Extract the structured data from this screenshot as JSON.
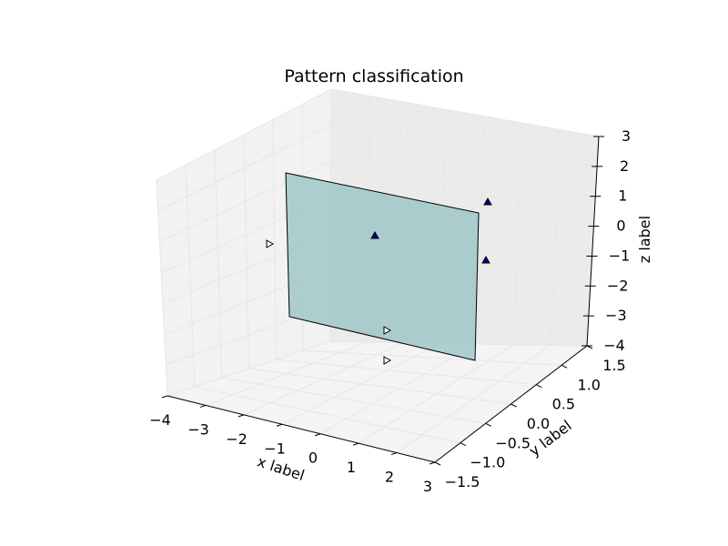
{
  "chart_data": {
    "type": "scatter",
    "title": "Pattern classification",
    "xlabel": "x label",
    "ylabel": "y label",
    "zlabel": "z label",
    "xlim": [
      -4,
      3
    ],
    "ylim": [
      -1.5,
      1.5
    ],
    "zlim": [
      -4,
      3
    ],
    "xticks": [
      "−4",
      "−3",
      "−2",
      "−1",
      "0",
      "1",
      "2",
      "3"
    ],
    "yticks": [
      "−1.5",
      "−1.0",
      "−0.5",
      "0.0",
      "0.5",
      "1.0",
      "1.5"
    ],
    "zticks": [
      "−4",
      "−3",
      "−2",
      "−1",
      "0",
      "1",
      "2",
      "3"
    ],
    "grid": true,
    "plane_color": "#8fbfbf",
    "series": [
      {
        "marker": "triangle-up",
        "color": "#00008b",
        "points": [
          [
            -0.6,
            -0.1,
            0
          ],
          [
            1.6,
            0.0,
            1
          ],
          [
            1.6,
            0.1,
            -1
          ]
        ]
      },
      {
        "marker": "triangle-right",
        "color": "#ffffff",
        "points": [
          [
            -2.0,
            0.0,
            0
          ],
          [
            -0.3,
            -1.0,
            -2
          ],
          [
            0.4,
            -1.1,
            -2
          ]
        ]
      }
    ],
    "plane": {
      "corners": [
        [
          -2,
          0,
          3
        ],
        [
          -2,
          0,
          -4
        ],
        [
          1,
          1.5,
          -4
        ],
        [
          1,
          1.5,
          3
        ]
      ]
    }
  }
}
